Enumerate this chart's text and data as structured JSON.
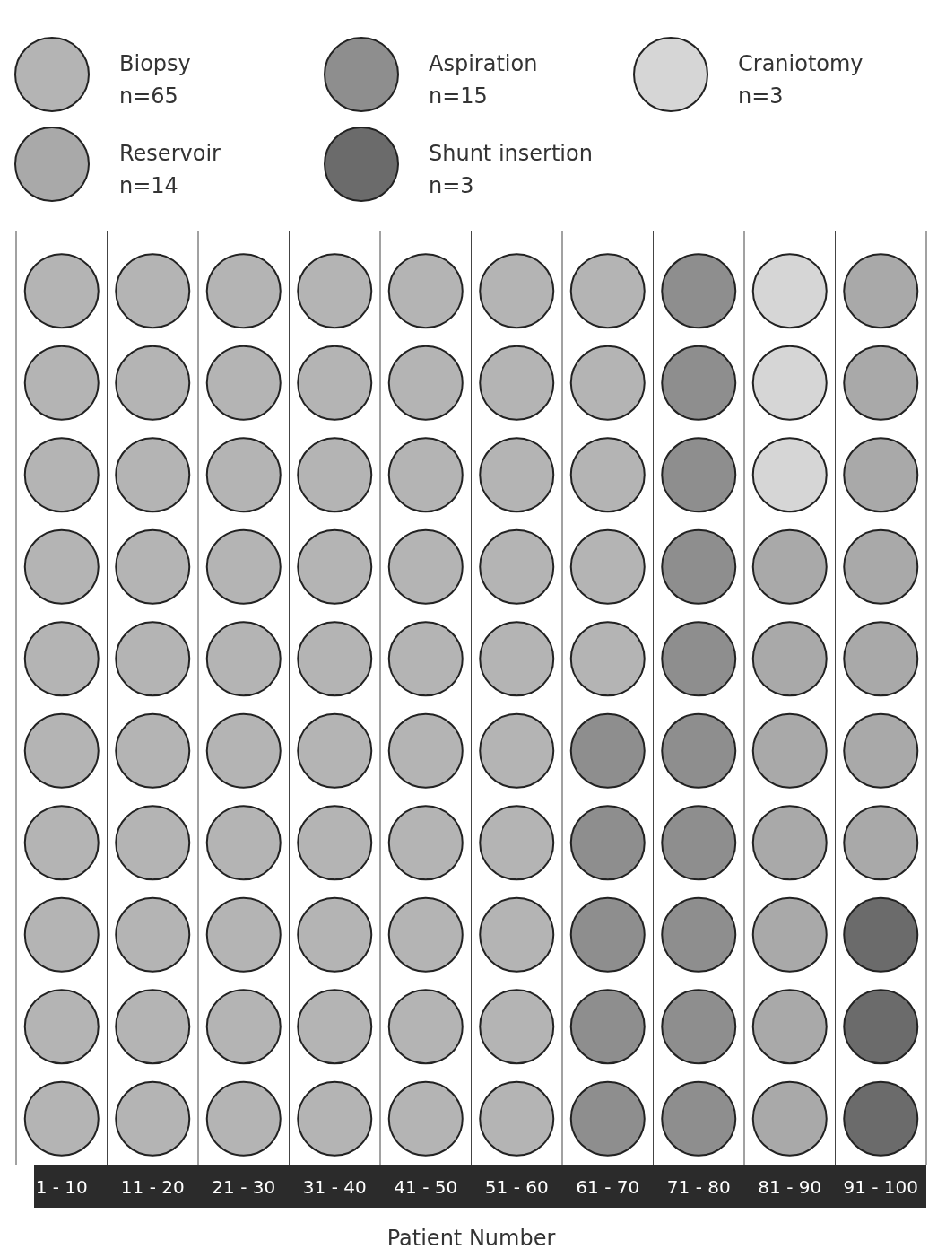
{
  "chart_data": {
    "type": "other",
    "xlabel": "Patient Number",
    "categories": [
      "Biopsy",
      "Aspiration",
      "Craniotomy",
      "Reservoir",
      "Shunt insertion"
    ],
    "values": [
      65,
      15,
      3,
      14,
      3
    ],
    "value_labels": [
      "n=65",
      "n=15",
      "n=3",
      "n=14",
      "n=3"
    ],
    "colors": [
      "#b4b4b4",
      "#8e8e8e",
      "#d6d6d6",
      "#a9a9a9",
      "#6b6b6b"
    ],
    "annotations": [
      "1 - 10",
      "11 - 20",
      "21 - 30",
      "31 - 40",
      "41 - 50",
      "51 - 60",
      "61 - 70",
      "71 - 80",
      "81 - 90",
      "91 - 100"
    ]
  }
}
